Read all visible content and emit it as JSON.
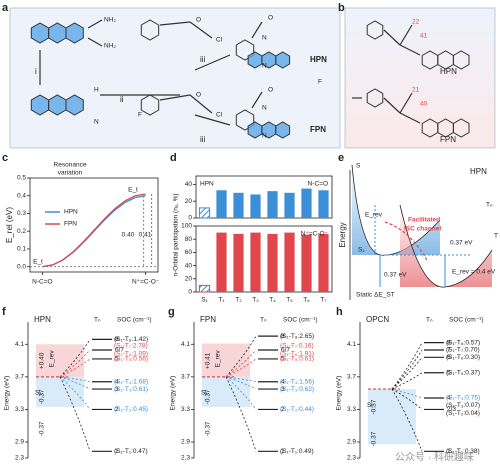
{
  "panel_labels": [
    "a",
    "b",
    "c",
    "d",
    "e",
    "f",
    "g",
    "h"
  ],
  "scheme": {
    "steps": [
      "i",
      "ii",
      "iii",
      "iii"
    ],
    "atoms": [
      "NH₂",
      "NH₂",
      "N",
      "H",
      "O",
      "Cl",
      "O",
      "Cl",
      "F",
      "N",
      "N",
      "O",
      "N",
      "N",
      "O",
      "F"
    ],
    "products": [
      "HPN",
      "FPN"
    ]
  },
  "structures": {
    "names": [
      "HPN",
      "FPN"
    ],
    "angles": [
      "22",
      "41",
      "21",
      "40"
    ]
  },
  "schematic": {
    "title": "HPN",
    "axis": "Energy",
    "labels": [
      "E_rev",
      "0.37 eV",
      "0.37 eV",
      "Facilitated",
      "ISC channel",
      "E_rev = 0.4 eV",
      "Static ΔE_ST",
      "S₁",
      "S",
      "T",
      "Tₙ"
    ]
  },
  "watermark": "公众号 · 科研趣味",
  "chart_data": [
    {
      "type": "line",
      "ylabel": "E_rel (eV)",
      "annotations": [
        "Resonance",
        "variation",
        "0.40",
        "0.41",
        "E_t",
        "E_t"
      ],
      "x": [
        0,
        0.1,
        0.2,
        0.3,
        0.4,
        0.5,
        0.6,
        0.7,
        0.8,
        0.9,
        1
      ],
      "xlim": [
        -0.12,
        1.12
      ],
      "xticks": [
        {
          "value": 0,
          "label": "N-C=O"
        },
        {
          "value": 1,
          "label": "N⁺=C-O⁻"
        }
      ],
      "ylim": [
        -0.03,
        0.5
      ],
      "yticks": [
        {
          "value": 0,
          "label": "0.0"
        },
        0.1,
        0.2,
        0.3,
        0.4,
        0.5
      ],
      "series": [
        {
          "name": "HPN",
          "color": "#3a8fd6",
          "values": [
            0,
            0.01,
            0.038,
            0.082,
            0.138,
            0.2,
            0.262,
            0.318,
            0.362,
            0.39,
            0.4
          ]
        },
        {
          "name": "FPN",
          "color": "#e0474c",
          "values": [
            0,
            0.01,
            0.039,
            0.085,
            0.142,
            0.205,
            0.268,
            0.326,
            0.371,
            0.4,
            0.41
          ]
        }
      ]
    },
    {
      "type": "bar",
      "title": "HPN",
      "ylabel": "n-Orbital participation (nₓ, %)",
      "categories": [
        "S₁",
        "T₁",
        "T₂",
        "T₃",
        "T₄",
        "T₅",
        "T₆",
        "T₇"
      ],
      "hatch_first": true,
      "panels": [
        {
          "label": "N-C=O",
          "color": "#3a8fd6",
          "ylim": [
            0,
            50
          ],
          "yticks": [
            0,
            20,
            40
          ],
          "values": [
            12,
            33,
            30,
            28,
            32,
            30,
            35,
            33
          ]
        },
        {
          "label": "N⁺=C-O⁻",
          "color": "#e0474c",
          "ylim": [
            0,
            100
          ],
          "yticks": [
            0,
            20,
            40,
            60,
            80,
            100
          ],
          "values": [
            10,
            90,
            88,
            90,
            88,
            90,
            87,
            88
          ]
        }
      ]
    },
    {
      "type": "levels",
      "title": "HPN",
      "ylabel": "Energy (eV)",
      "column": "Tₙ",
      "soc_header": "SOC (cm⁻¹)",
      "ylim": [
        2.3,
        4.3
      ],
      "axis_break": 2.9,
      "yticks": [
        2.3,
        2.9,
        3.3,
        3.7,
        4.1
      ],
      "s1": 3.7,
      "s1_label": "S₁",
      "rev_label": "E_rev",
      "highlight": {
        "upper": [
          3.7,
          4.1
        ],
        "lower": [
          3.33,
          3.7
        ]
      },
      "gaps": [
        "+0.40",
        "-0.37",
        "-0.37"
      ],
      "levels": [
        {
          "label": "8",
          "energy": 4.16,
          "color": "#222",
          "soc": [
            "(S₁-T₈:1.42)"
          ]
        },
        {
          "label": "6/7",
          "energy": 4.03,
          "color": "#e0474c",
          "soc": [
            "(S₁-T₇:2.78)",
            "(S₁-T₆:1.09)"
          ]
        },
        {
          "label": "5",
          "energy": 3.92,
          "color": "#e0474c",
          "soc": [
            "(S₁-T₅:0.56)"
          ]
        },
        {
          "label": "4",
          "energy": 3.64,
          "color": "#3a8fd6",
          "soc": [
            "(S₁-T₄:1.68)"
          ]
        },
        {
          "label": "3",
          "energy": 3.55,
          "color": "#3a8fd6",
          "soc": [
            "(S₁-T₃:0.61)"
          ]
        },
        {
          "label": "2",
          "energy": 3.3,
          "color": "#3a8fd6",
          "soc": [
            "(S₁-T₂:0.45)"
          ]
        },
        {
          "label": "1",
          "energy": 2.55,
          "color": "#222",
          "soc": [
            "(S₁-T₁:0.47)"
          ]
        }
      ]
    },
    {
      "type": "levels",
      "title": "FPN",
      "ylabel": "Energy (eV)",
      "column": "Tₙ",
      "soc_header": "SOC (cm⁻¹)",
      "ylim": [
        2.3,
        4.3
      ],
      "axis_break": 2.9,
      "yticks": [
        2.3,
        2.9,
        3.3,
        3.7,
        4.1
      ],
      "s1": 3.7,
      "s1_label": "S₁",
      "rev_label": "E_rev",
      "highlight": {
        "upper": [
          3.7,
          4.11
        ],
        "lower": [
          3.33,
          3.7
        ]
      },
      "gaps": [
        "+0.41",
        "-0.37",
        "-0.37"
      ],
      "levels": [
        {
          "label": "8",
          "energy": 4.2,
          "color": "#222",
          "soc": [
            "(S₁-T₈:2.65)"
          ]
        },
        {
          "label": "6/7",
          "energy": 4.03,
          "color": "#e0474c",
          "soc": [
            "(S₁-T₇:0.16)",
            "(S₁-T₆:1.91)"
          ]
        },
        {
          "label": "5",
          "energy": 3.92,
          "color": "#e0474c",
          "soc": [
            "(S₁-T₅:0.61)"
          ]
        },
        {
          "label": "4",
          "energy": 3.64,
          "color": "#3a8fd6",
          "soc": [
            "(S₁-T₄:1.56)"
          ]
        },
        {
          "label": "3",
          "energy": 3.55,
          "color": "#3a8fd6",
          "soc": [
            "(S₁-T₃:0.62)"
          ]
        },
        {
          "label": "2",
          "energy": 3.3,
          "color": "#3a8fd6",
          "soc": [
            "(S₁-T₂:0.44)"
          ]
        },
        {
          "label": "1",
          "energy": 2.55,
          "color": "#222",
          "soc": [
            "(S₁-T₁:0.49)"
          ]
        }
      ]
    },
    {
      "type": "levels",
      "title": "OPCN",
      "ylabel": "Energy (eV)",
      "column": "Tₙ",
      "soc_header": "SOC (cm⁻¹)",
      "ylim": [
        2.3,
        4.3
      ],
      "axis_break": 2.9,
      "yticks": [
        2.3,
        2.9,
        3.3,
        3.7,
        4.1
      ],
      "s1": 3.55,
      "s1_label": "S₁",
      "highlight": {
        "lower": [
          2.81,
          3.55
        ]
      },
      "gaps": [
        "-0.37",
        "-0.37"
      ],
      "levels": [
        {
          "label": "8",
          "energy": 4.12,
          "color": "#222",
          "soc": [
            "(S₁-T₈:0.57)"
          ]
        },
        {
          "label": "7",
          "energy": 4.03,
          "color": "#222",
          "soc": [
            "(S₁-T₇:0.70)"
          ]
        },
        {
          "label": "6",
          "energy": 3.94,
          "color": "#222",
          "soc": [
            "(S₁-T₆:0.30)"
          ]
        },
        {
          "label": "5",
          "energy": 3.75,
          "color": "#222",
          "soc": [
            "(S₁-T₅:0.37)"
          ]
        },
        {
          "label": "4",
          "energy": 3.44,
          "color": "#3a8fd6",
          "soc": [
            "(S₁-T₄:0.75)"
          ]
        },
        {
          "label": "2/3",
          "energy": 3.3,
          "color": "#222",
          "soc": [
            "(S₁-T₃:0.07)",
            "(S₁-T₂:0.04)"
          ]
        },
        {
          "label": "1",
          "energy": 2.55,
          "color": "#222",
          "soc": [
            "(S₁-T₁:0.38)"
          ]
        }
      ]
    }
  ]
}
